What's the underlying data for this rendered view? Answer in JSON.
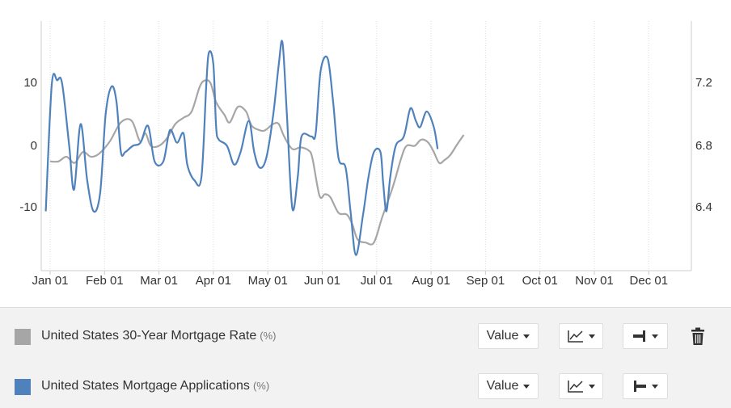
{
  "chart_data": {
    "type": "line",
    "x_labels": [
      "Jan 01",
      "Feb 01",
      "Mar 01",
      "Apr 01",
      "May 01",
      "Jun 01",
      "Jul 01",
      "Aug 01",
      "Sep 01",
      "Oct 01",
      "Nov 01",
      "Dec 01"
    ],
    "y_left": {
      "ticks": [
        "10",
        "0",
        "-10"
      ],
      "range": [
        -20,
        20
      ]
    },
    "y_right": {
      "ticks": [
        "7.2",
        "6.8",
        "6.4"
      ],
      "range": [
        6.0,
        7.6
      ]
    },
    "grid": "vertical dotted",
    "series": [
      {
        "name": "United States 30-Year Mortgage Rate",
        "unit": "(%)",
        "color": "#a6a6a6",
        "axis": "right",
        "points": [
          [
            0,
            6.7
          ],
          [
            0.15,
            6.7
          ],
          [
            0.3,
            6.73
          ],
          [
            0.45,
            6.69
          ],
          [
            0.6,
            6.76
          ],
          [
            0.75,
            6.73
          ],
          [
            0.9,
            6.75
          ],
          [
            1.1,
            6.83
          ],
          [
            1.3,
            6.95
          ],
          [
            1.5,
            6.96
          ],
          [
            1.65,
            6.83
          ],
          [
            1.75,
            6.88
          ],
          [
            1.85,
            6.8
          ],
          [
            2.0,
            6.8
          ],
          [
            2.15,
            6.85
          ],
          [
            2.3,
            6.94
          ],
          [
            2.45,
            6.98
          ],
          [
            2.6,
            7.02
          ],
          [
            2.75,
            7.18
          ],
          [
            2.85,
            7.22
          ],
          [
            2.95,
            7.2
          ],
          [
            3.05,
            7.08
          ],
          [
            3.2,
            7.0
          ],
          [
            3.3,
            6.95
          ],
          [
            3.45,
            7.05
          ],
          [
            3.6,
            7.02
          ],
          [
            3.7,
            6.93
          ],
          [
            3.85,
            6.9
          ],
          [
            3.95,
            6.9
          ],
          [
            4.1,
            6.94
          ],
          [
            4.2,
            6.94
          ],
          [
            4.3,
            6.86
          ],
          [
            4.45,
            6.78
          ],
          [
            4.6,
            6.79
          ],
          [
            4.75,
            6.77
          ],
          [
            4.82,
            6.72
          ],
          [
            4.95,
            6.48
          ],
          [
            5.05,
            6.49
          ],
          [
            5.15,
            6.47
          ],
          [
            5.3,
            6.37
          ],
          [
            5.45,
            6.36
          ],
          [
            5.55,
            6.3
          ],
          [
            5.65,
            6.2
          ],
          [
            5.8,
            6.18
          ],
          [
            5.95,
            6.18
          ],
          [
            6.1,
            6.34
          ],
          [
            6.3,
            6.54
          ],
          [
            6.45,
            6.72
          ],
          [
            6.55,
            6.8
          ],
          [
            6.7,
            6.8
          ],
          [
            6.82,
            6.84
          ],
          [
            6.95,
            6.82
          ],
          [
            7.05,
            6.76
          ],
          [
            7.15,
            6.69
          ],
          [
            7.25,
            6.71
          ],
          [
            7.35,
            6.74
          ],
          [
            7.5,
            6.82
          ],
          [
            7.6,
            6.87
          ]
        ]
      },
      {
        "name": "United States Mortgage Applications",
        "unit": "(%)",
        "color": "#4f81bd",
        "axis": "left",
        "points": [
          [
            -0.08,
            -10.5
          ],
          [
            0.03,
            9.8
          ],
          [
            0.13,
            10.5
          ],
          [
            0.22,
            10
          ],
          [
            0.35,
            0
          ],
          [
            0.44,
            -7
          ],
          [
            0.56,
            3.5
          ],
          [
            0.68,
            -5.5
          ],
          [
            0.8,
            -10.5
          ],
          [
            0.92,
            -7.5
          ],
          [
            1.02,
            5
          ],
          [
            1.13,
            9.5
          ],
          [
            1.22,
            7
          ],
          [
            1.3,
            -1
          ],
          [
            1.38,
            -1
          ],
          [
            1.52,
            0
          ],
          [
            1.66,
            0.5
          ],
          [
            1.8,
            3.2
          ],
          [
            1.92,
            -2.5
          ],
          [
            2.08,
            -2.5
          ],
          [
            2.2,
            2.5
          ],
          [
            2.33,
            0.5
          ],
          [
            2.45,
            2
          ],
          [
            2.52,
            -3
          ],
          [
            2.65,
            -5.5
          ],
          [
            2.78,
            -5
          ],
          [
            2.87,
            10
          ],
          [
            2.92,
            15
          ],
          [
            3.0,
            13
          ],
          [
            3.05,
            3
          ],
          [
            3.1,
            1
          ],
          [
            3.25,
            0
          ],
          [
            3.38,
            -3
          ],
          [
            3.5,
            -1
          ],
          [
            3.65,
            4
          ],
          [
            3.75,
            -1
          ],
          [
            3.85,
            -3.5
          ],
          [
            3.97,
            -2
          ],
          [
            4.1,
            5
          ],
          [
            4.2,
            13
          ],
          [
            4.27,
            16.5
          ],
          [
            4.35,
            5
          ],
          [
            4.45,
            -10
          ],
          [
            4.55,
            -5
          ],
          [
            4.62,
            1.5
          ],
          [
            4.8,
            1.5
          ],
          [
            4.88,
            2
          ],
          [
            4.97,
            12
          ],
          [
            5.1,
            14
          ],
          [
            5.2,
            7
          ],
          [
            5.3,
            -2
          ],
          [
            5.43,
            -3.5
          ],
          [
            5.52,
            -10.5
          ],
          [
            5.62,
            -17.5
          ],
          [
            5.75,
            -11
          ],
          [
            5.85,
            -5
          ],
          [
            5.95,
            -1
          ],
          [
            6.07,
            -1
          ],
          [
            6.12,
            -6
          ],
          [
            6.18,
            -10.5
          ],
          [
            6.25,
            -5
          ],
          [
            6.35,
            0
          ],
          [
            6.5,
            1.5
          ],
          [
            6.62,
            6
          ],
          [
            6.72,
            4
          ],
          [
            6.8,
            3
          ],
          [
            6.92,
            5.5
          ],
          [
            7.05,
            3
          ],
          [
            7.12,
            -0.5
          ]
        ]
      }
    ]
  },
  "legend": {
    "rows": [
      {
        "name": "United States 30-Year Mortgage Rate",
        "unit": "(%)",
        "color": "#a6a6a6",
        "value_label": "Value"
      },
      {
        "name": "United States Mortgage Applications",
        "unit": "(%)",
        "color": "#4f81bd",
        "value_label": "Value"
      }
    ],
    "icons": [
      "line-chart-icon",
      "axis-right-icon",
      "axis-left-icon",
      "trash-icon"
    ]
  }
}
